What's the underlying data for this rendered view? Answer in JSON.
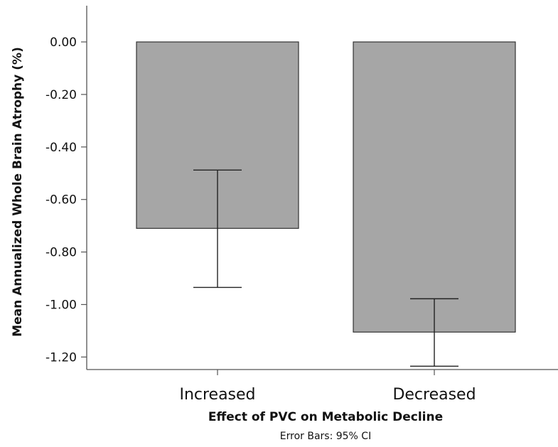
{
  "chart_data": {
    "type": "bar",
    "categories": [
      "Increased",
      "Decreased"
    ],
    "values": [
      -0.71,
      -1.105
    ],
    "error_bars": {
      "type": "95% CI",
      "lower": [
        -0.935,
        -1.235
      ],
      "upper": [
        -0.488,
        -0.978
      ]
    },
    "xlabel": "Effect of PVC on Metabolic Decline",
    "ylabel": "Mean Annualized Whole Brain Atrophy (%)",
    "footnote": "Error Bars: 95% CI",
    "ylim": [
      -1.25,
      0.12
    ],
    "yticks": [
      0.0,
      -0.2,
      -0.4,
      -0.6,
      -0.8,
      -1.0,
      -1.2
    ],
    "ytick_labels": [
      "0.00",
      "-0.20",
      "-0.40",
      "-0.60",
      "-0.80",
      "-1.00",
      "-1.20"
    ],
    "grid": false,
    "legend": "none",
    "bar_color": "#a6a6a6",
    "bar_edge_color": "#333333",
    "axis_color": "#555555"
  }
}
